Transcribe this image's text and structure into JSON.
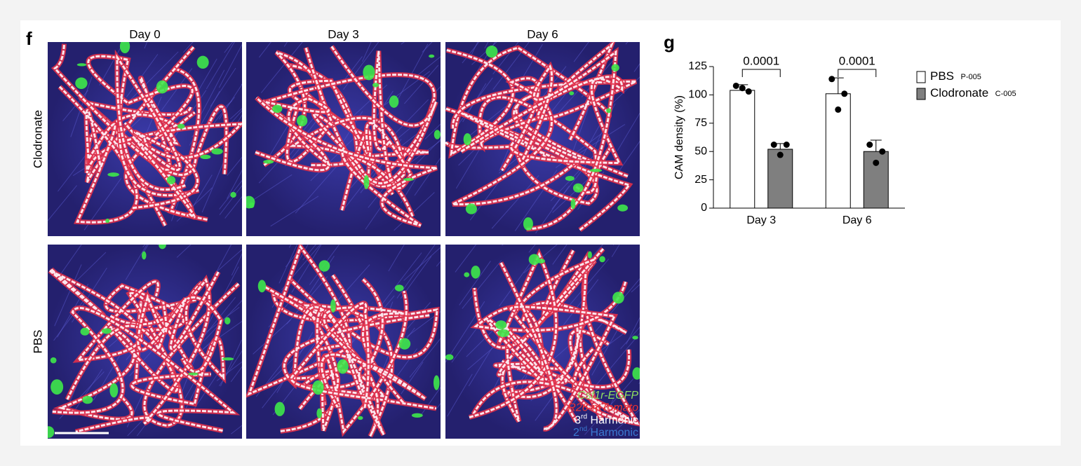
{
  "panel_f": {
    "label": "f",
    "columns": [
      "Day 0",
      "Day 3",
      "Day 6"
    ],
    "rows": [
      "Clodronate",
      "PBS"
    ],
    "legend": [
      {
        "text": "Csf1r-EGFP",
        "color": "#8fe060",
        "italic": true
      },
      {
        "text": "R26-mTomato",
        "color": "#ee3030",
        "italic": true
      },
      {
        "num": "3",
        "sup": "rd",
        "text": "Harmonic",
        "color": "#ffffff"
      },
      {
        "num": "2",
        "sup": "nd",
        "text": "Harmonic",
        "color": "#3a78d0"
      }
    ]
  },
  "chart_data": {
    "type": "bar",
    "label": "g",
    "ylabel": "CAM density (%)",
    "categories": [
      "Day 3",
      "Day 6"
    ],
    "series": [
      {
        "name": "PBS",
        "code": "P-005",
        "color": "#ffffff",
        "values": [
          104,
          101
        ],
        "errors": [
          5,
          14
        ],
        "points": [
          [
            108,
            103,
            106
          ],
          [
            114,
            101,
            87
          ]
        ]
      },
      {
        "name": "Clodronate",
        "code": "C-005",
        "color": "#7f7f7f",
        "values": [
          52,
          50
        ],
        "errors": [
          5,
          10
        ],
        "points": [
          [
            56,
            56,
            47
          ],
          [
            56,
            50,
            40
          ]
        ]
      }
    ],
    "annotations": [
      "0.0001",
      "0.0001"
    ],
    "ylim": [
      0,
      125
    ],
    "yticks": [
      0,
      25,
      50,
      75,
      100,
      125
    ]
  }
}
